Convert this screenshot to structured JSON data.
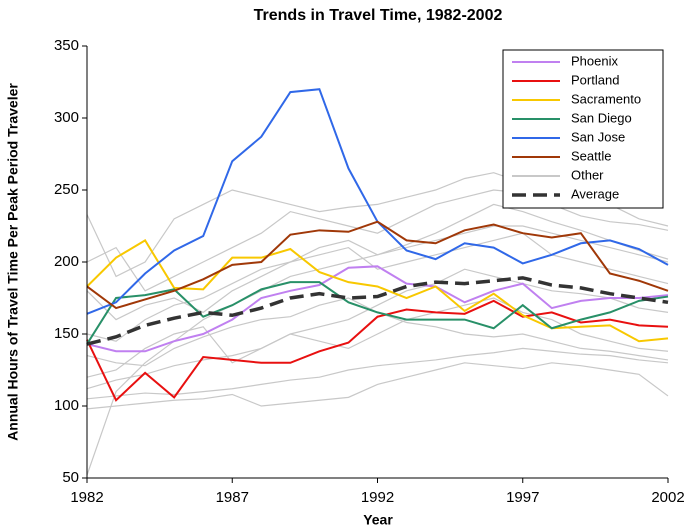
{
  "chart_data": {
    "type": "line",
    "title": "Trends in Travel Time, 1982-2002",
    "x_label": "Year",
    "y_label": "Annual Hours of Travel Time Per Peak Period Traveler",
    "x": [
      1982,
      1983,
      1984,
      1985,
      1986,
      1987,
      1988,
      1989,
      1990,
      1991,
      1992,
      1993,
      1994,
      1995,
      1996,
      1997,
      1998,
      1999,
      2000,
      2001,
      2002
    ],
    "xlim": [
      1982,
      2002
    ],
    "xticks": [
      1982,
      1987,
      1992,
      1997,
      2002
    ],
    "ylim": [
      50,
      350
    ],
    "yticks": [
      50,
      100,
      150,
      200,
      250,
      300,
      350
    ],
    "legend": "upper right",
    "series": [
      {
        "name": "Phoenix",
        "color": "#c080f0",
        "values": [
          143,
          138,
          138,
          145,
          150,
          160,
          175,
          180,
          184,
          196,
          197,
          185,
          183,
          172,
          180,
          185,
          168,
          173,
          175,
          175,
          177
        ]
      },
      {
        "name": "Portland",
        "color": "#e81010",
        "values": [
          146,
          104,
          123,
          106,
          134,
          132,
          130,
          130,
          138,
          144,
          162,
          167,
          165,
          164,
          173,
          162,
          165,
          158,
          160,
          156,
          155
        ]
      },
      {
        "name": "Sacramento",
        "color": "#f8c800",
        "values": [
          183,
          203,
          215,
          182,
          181,
          203,
          203,
          209,
          193,
          186,
          183,
          175,
          183,
          166,
          178,
          163,
          154,
          155,
          156,
          145,
          147
        ]
      },
      {
        "name": "San Diego",
        "color": "#289068",
        "values": [
          143,
          175,
          177,
          181,
          162,
          170,
          181,
          186,
          186,
          172,
          165,
          160,
          160,
          160,
          154,
          170,
          154,
          160,
          165,
          173,
          176
        ]
      },
      {
        "name": "San Jose",
        "color": "#3068e8",
        "values": [
          164,
          172,
          192,
          208,
          218,
          270,
          287,
          318,
          320,
          265,
          228,
          208,
          202,
          213,
          210,
          199,
          205,
          213,
          215,
          209,
          198
        ]
      },
      {
        "name": "Seattle",
        "color": "#a03808",
        "values": [
          183,
          168,
          174,
          180,
          188,
          198,
          200,
          219,
          222,
          221,
          228,
          215,
          213,
          222,
          226,
          220,
          217,
          220,
          192,
          187,
          180
        ]
      },
      {
        "name": "Other",
        "color": "#c8c8c8",
        "lines": [
          [
            52,
            110,
            130,
            145,
            160,
            170,
            180,
            190,
            195,
            200,
            205,
            210,
            215,
            220,
            225,
            225,
            220,
            215,
            210,
            205,
            200
          ],
          [
            105,
            107,
            109,
            108,
            110,
            112,
            115,
            118,
            120,
            125,
            128,
            130,
            132,
            135,
            137,
            140,
            138,
            136,
            135,
            132,
            130
          ],
          [
            233,
            190,
            200,
            230,
            240,
            250,
            245,
            240,
            235,
            238,
            240,
            245,
            250,
            258,
            262,
            255,
            250,
            245,
            240,
            230,
            225
          ],
          [
            120,
            125,
            140,
            150,
            155,
            130,
            140,
            150,
            145,
            140,
            150,
            160,
            165,
            170,
            175,
            165,
            160,
            150,
            145,
            140,
            138
          ],
          [
            98,
            100,
            102,
            104,
            105,
            108,
            100,
            102,
            104,
            106,
            115,
            120,
            125,
            130,
            128,
            126,
            130,
            128,
            125,
            122,
            107
          ],
          [
            200,
            210,
            180,
            190,
            200,
            210,
            220,
            235,
            230,
            225,
            220,
            230,
            240,
            245,
            250,
            248,
            240,
            232,
            228,
            226,
            222
          ],
          [
            112,
            118,
            122,
            128,
            132,
            135,
            140,
            150,
            155,
            160,
            170,
            180,
            185,
            195,
            190,
            185,
            180,
            178,
            175,
            168,
            165
          ],
          [
            180,
            160,
            170,
            175,
            165,
            180,
            190,
            200,
            205,
            210,
            195,
            200,
            205,
            210,
            215,
            220,
            205,
            200,
            195,
            190,
            185
          ],
          [
            135,
            130,
            128,
            140,
            148,
            155,
            160,
            162,
            170,
            175,
            165,
            158,
            155,
            150,
            148,
            150,
            145,
            140,
            138,
            135,
            132
          ],
          [
            150,
            145,
            160,
            170,
            175,
            185,
            195,
            200,
            210,
            215,
            205,
            212,
            220,
            230,
            240,
            235,
            228,
            222,
            215,
            208,
            202
          ]
        ]
      },
      {
        "name": "Average",
        "color": "#333333",
        "dash": true,
        "values": [
          143,
          148,
          156,
          161,
          165,
          163,
          168,
          175,
          178,
          175,
          176,
          183,
          186,
          185,
          187,
          189,
          184,
          182,
          178,
          175,
          172
        ]
      }
    ]
  }
}
